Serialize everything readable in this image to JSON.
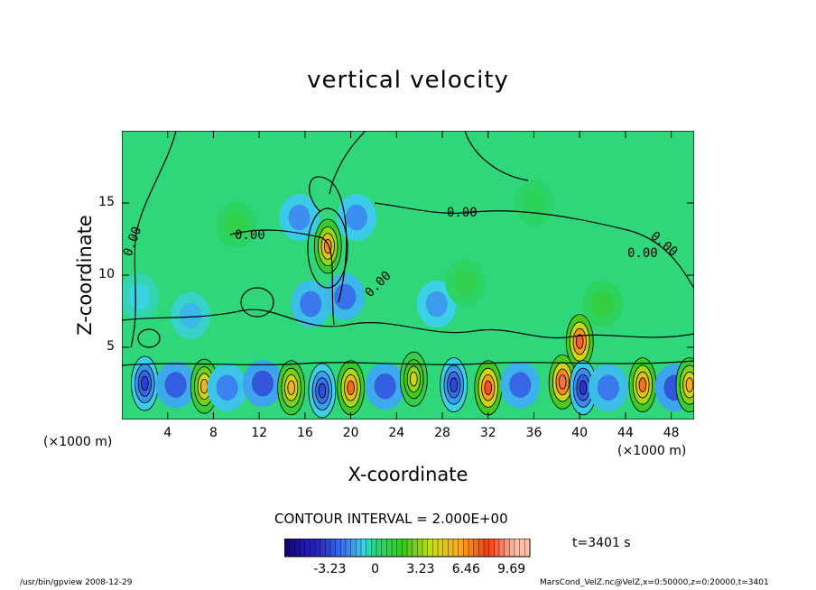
{
  "chart_data": {
    "type": "heatmap",
    "title": "vertical velocity",
    "xlabel": "X-coordinate",
    "ylabel": "Z-coordinate",
    "x_unit_label": "(×1000 m)",
    "xlim": [
      0,
      50
    ],
    "ylim": [
      0,
      20
    ],
    "x_ticks": [
      4,
      8,
      12,
      16,
      20,
      24,
      28,
      32,
      36,
      40,
      44,
      48
    ],
    "y_ticks": [
      5,
      10,
      15
    ],
    "contour_labels": [
      "0.00",
      "0.00",
      "0.00",
      "0.00",
      "0.00",
      "0.00"
    ],
    "contour_interval_text": "CONTOUR INTERVAL = 2.000E+00",
    "colorbar_ticks": [
      "-3.23",
      "0",
      "3.23",
      "6.46",
      "9.69"
    ],
    "colorbar_values": [
      -3.23,
      0,
      3.23,
      6.46,
      9.69
    ],
    "colorbar_range": [
      -6.46,
      11.0
    ],
    "time_text": "t=3401 s",
    "cells": [
      {
        "x": 2.0,
        "z": 2.5,
        "w": -3.5
      },
      {
        "x": 4.7,
        "z": 2.4,
        "w": -2.8
      },
      {
        "x": 7.2,
        "z": 2.3,
        "w": 5.5
      },
      {
        "x": 9.2,
        "z": 2.2,
        "w": -2.0
      },
      {
        "x": 12.3,
        "z": 2.5,
        "w": -3.0
      },
      {
        "x": 14.8,
        "z": 2.2,
        "w": 5.8
      },
      {
        "x": 17.5,
        "z": 2.0,
        "w": -3.2
      },
      {
        "x": 20.0,
        "z": 2.2,
        "w": 7.2
      },
      {
        "x": 23.0,
        "z": 2.3,
        "w": -2.8
      },
      {
        "x": 25.5,
        "z": 2.8,
        "w": 4.2
      },
      {
        "x": 29.0,
        "z": 2.4,
        "w": -3.3
      },
      {
        "x": 32.0,
        "z": 2.2,
        "w": 8.3
      },
      {
        "x": 34.8,
        "z": 2.4,
        "w": -2.6
      },
      {
        "x": 38.5,
        "z": 2.6,
        "w": 8.8
      },
      {
        "x": 40.0,
        "z": 5.4,
        "w": 8.5
      },
      {
        "x": 40.3,
        "z": 2.2,
        "w": -3.8
      },
      {
        "x": 42.5,
        "z": 2.2,
        "w": -2.2
      },
      {
        "x": 45.5,
        "z": 2.4,
        "w": 7.0
      },
      {
        "x": 48.3,
        "z": 2.2,
        "w": -3.0
      },
      {
        "x": 49.6,
        "z": 2.4,
        "w": 6.0
      },
      {
        "x": 18.0,
        "z": 12.0,
        "w": 6.5
      },
      {
        "x": 16.5,
        "z": 8.0,
        "w": -2.2
      },
      {
        "x": 19.5,
        "z": 8.5,
        "w": -2.4
      },
      {
        "x": 15.5,
        "z": 14.0,
        "w": -1.8
      },
      {
        "x": 20.5,
        "z": 14.0,
        "w": -1.8
      },
      {
        "x": 27.5,
        "z": 8.0,
        "w": -1.6
      },
      {
        "x": 6.0,
        "z": 7.2,
        "w": -1.2
      },
      {
        "x": 1.5,
        "z": 8.5,
        "w": -0.8
      },
      {
        "x": 42.0,
        "z": 8.0,
        "w": 1.2
      },
      {
        "x": 30.0,
        "z": 9.5,
        "w": 0.9
      },
      {
        "x": 10.0,
        "z": 13.5,
        "w": 1.0
      },
      {
        "x": 36.0,
        "z": 15.0,
        "w": 0.7
      }
    ]
  },
  "footer": {
    "left": "/usr/bin/gpview  2008-12-29",
    "right": "MarsCond_VelZ.nc@VelZ,x=0:50000,z=0:20000,t=3401"
  }
}
